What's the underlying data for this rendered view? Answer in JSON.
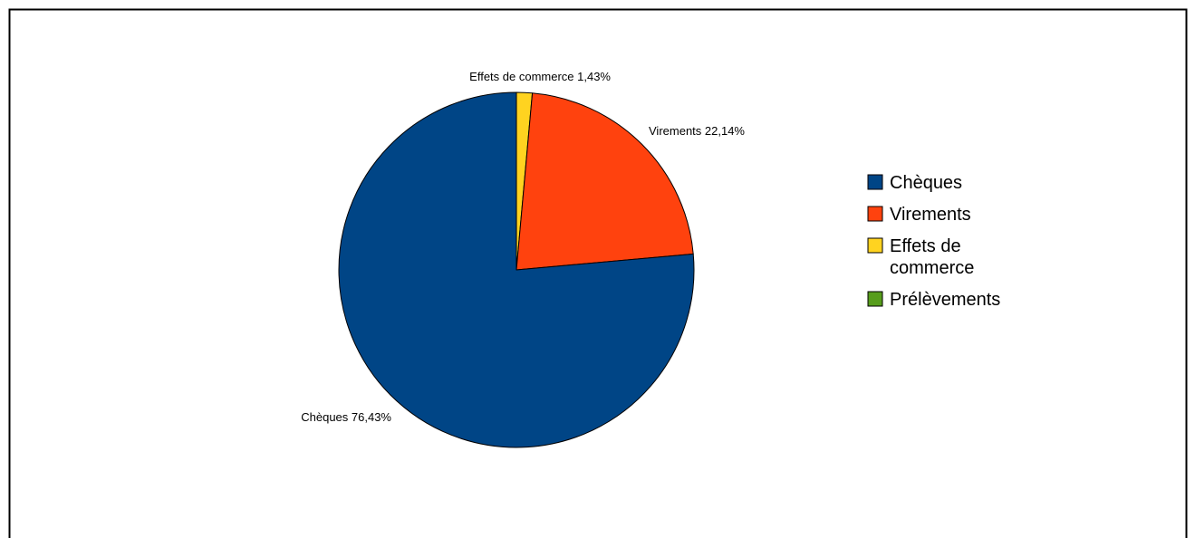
{
  "chart_data": {
    "type": "pie",
    "slices": [
      {
        "name": "Chèques",
        "value": 76.43,
        "label": "Chèques 76,43%",
        "color": "#004586"
      },
      {
        "name": "Virements",
        "value": 22.14,
        "label": "Virements 22,14%",
        "color": "#ff420e"
      },
      {
        "name": "Effets de commerce",
        "value": 1.43,
        "label": "Effets de commerce 1,43%",
        "color": "#ffd320"
      },
      {
        "name": "Prélèvements",
        "value": 0,
        "label": "",
        "color": "#579d1c"
      }
    ],
    "legend": {
      "position": "right",
      "items": [
        {
          "lines": [
            "Chèques"
          ],
          "color": "#004586"
        },
        {
          "lines": [
            "Virements"
          ],
          "color": "#ff420e"
        },
        {
          "lines": [
            "Effets de",
            "commerce"
          ],
          "color": "#ffd320"
        },
        {
          "lines": [
            "Prélèvements"
          ],
          "color": "#579d1c"
        }
      ]
    }
  }
}
